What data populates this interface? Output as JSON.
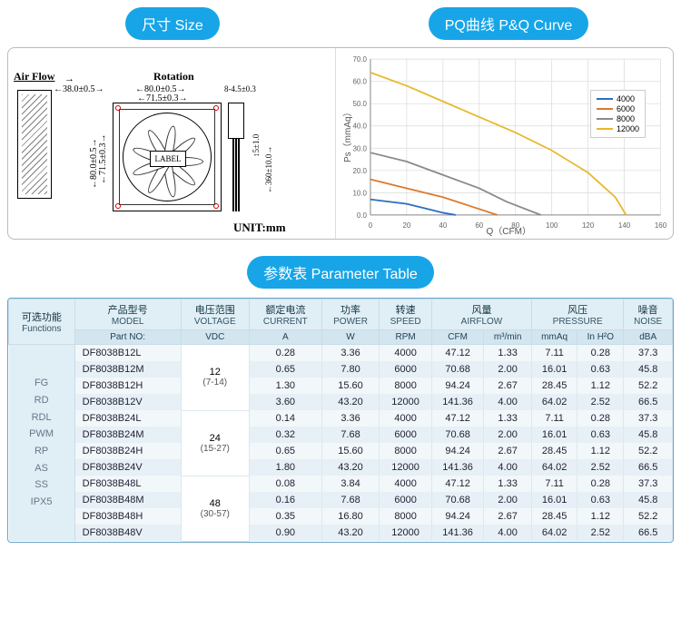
{
  "headers": {
    "size": "尺寸 Size",
    "pq": "PQ曲线 P&Q Curve",
    "param": "参数表 Parameter Table"
  },
  "drawing": {
    "airflow": "Air Flow",
    "rotation": "Rotation",
    "dim_depth": "38.0±0.5",
    "dim_w1": "80.0±0.5",
    "dim_w2": "71.5±0.3",
    "dim_hole": "8-4.5±0.3",
    "dim_h1": "80.0±0.5",
    "dim_h2": "71.5±0.3",
    "dim_conn1": "5±1.0",
    "dim_conn2": "360±10.0",
    "label": "LABEL",
    "unit": "UNIT:mm"
  },
  "chart": {
    "ylabel": "Ps（mmAq）",
    "xlabel": "Q（CFM）",
    "xlim": [
      0,
      160
    ],
    "xtick_step": 20,
    "ylim": [
      0,
      70
    ],
    "ytick_step": 10,
    "grid_color": "#d9d9d9",
    "axis_color": "#888",
    "background": "#ffffff",
    "series": [
      {
        "name": "4000",
        "color": "#2b6fbf",
        "points": [
          [
            0,
            7
          ],
          [
            20,
            5
          ],
          [
            30,
            3
          ],
          [
            40,
            1
          ],
          [
            47,
            0
          ]
        ]
      },
      {
        "name": "6000",
        "color": "#d97b2f",
        "points": [
          [
            0,
            16
          ],
          [
            20,
            12
          ],
          [
            40,
            8
          ],
          [
            55,
            4
          ],
          [
            70,
            0
          ]
        ]
      },
      {
        "name": "8000",
        "color": "#8a8a8a",
        "points": [
          [
            0,
            28
          ],
          [
            20,
            24
          ],
          [
            40,
            18
          ],
          [
            60,
            12
          ],
          [
            75,
            6
          ],
          [
            94,
            0
          ]
        ]
      },
      {
        "name": "12000",
        "color": "#e8b92e",
        "points": [
          [
            0,
            64
          ],
          [
            20,
            58
          ],
          [
            40,
            51
          ],
          [
            60,
            44
          ],
          [
            80,
            37
          ],
          [
            100,
            29
          ],
          [
            120,
            19
          ],
          [
            135,
            8
          ],
          [
            141,
            0
          ]
        ]
      }
    ]
  },
  "table": {
    "head": {
      "functions": {
        "zh": "可选功能",
        "en": "Functions"
      },
      "model": {
        "zh": "产品型号",
        "en": "MODEL"
      },
      "voltage": {
        "zh": "电压范围",
        "en": "VOLTAGE"
      },
      "current": {
        "zh": "额定电流",
        "en": "CURRENT"
      },
      "power": {
        "zh": "功率",
        "en": "POWER"
      },
      "speed": {
        "zh": "转速",
        "en": "SPEED"
      },
      "airflow": {
        "zh": "风量",
        "en": "AIRFLOW"
      },
      "pressure": {
        "zh": "风压",
        "en": "PRESSURE"
      },
      "noise": {
        "zh": "噪音",
        "en": "NOISE"
      }
    },
    "subhead": [
      "Part NO:",
      "VDC",
      "A",
      "W",
      "RPM",
      "CFM",
      "m³/min",
      "mmAq",
      "In H²O",
      "dBA"
    ],
    "functions_list": [
      "FG",
      "RD",
      "RDL",
      "PWM",
      "RP",
      "AS",
      "SS",
      "IPX5"
    ],
    "voltage_groups": [
      {
        "v": "12",
        "range": "(7-14)",
        "span": 4
      },
      {
        "v": "24",
        "range": "(15-27)",
        "span": 4
      },
      {
        "v": "48",
        "range": "(30-57)",
        "span": 4
      }
    ],
    "rows": [
      {
        "model": "DF8038B12L",
        "a": "0.28",
        "w": "3.36",
        "rpm": "4000",
        "cfm": "47.12",
        "m3": "1.33",
        "mmaq": "7.11",
        "inh": "0.28",
        "dba": "37.3"
      },
      {
        "model": "DF8038B12M",
        "a": "0.65",
        "w": "7.80",
        "rpm": "6000",
        "cfm": "70.68",
        "m3": "2.00",
        "mmaq": "16.01",
        "inh": "0.63",
        "dba": "45.8"
      },
      {
        "model": "DF8038B12H",
        "a": "1.30",
        "w": "15.60",
        "rpm": "8000",
        "cfm": "94.24",
        "m3": "2.67",
        "mmaq": "28.45",
        "inh": "1.12",
        "dba": "52.2"
      },
      {
        "model": "DF8038B12V",
        "a": "3.60",
        "w": "43.20",
        "rpm": "12000",
        "cfm": "141.36",
        "m3": "4.00",
        "mmaq": "64.02",
        "inh": "2.52",
        "dba": "66.5"
      },
      {
        "model": "DF8038B24L",
        "a": "0.14",
        "w": "3.36",
        "rpm": "4000",
        "cfm": "47.12",
        "m3": "1.33",
        "mmaq": "7.11",
        "inh": "0.28",
        "dba": "37.3"
      },
      {
        "model": "DF8038B24M",
        "a": "0.32",
        "w": "7.68",
        "rpm": "6000",
        "cfm": "70.68",
        "m3": "2.00",
        "mmaq": "16.01",
        "inh": "0.63",
        "dba": "45.8"
      },
      {
        "model": "DF8038B24H",
        "a": "0.65",
        "w": "15.60",
        "rpm": "8000",
        "cfm": "94.24",
        "m3": "2.67",
        "mmaq": "28.45",
        "inh": "1.12",
        "dba": "52.2"
      },
      {
        "model": "DF8038B24V",
        "a": "1.80",
        "w": "43.20",
        "rpm": "12000",
        "cfm": "141.36",
        "m3": "4.00",
        "mmaq": "64.02",
        "inh": "2.52",
        "dba": "66.5"
      },
      {
        "model": "DF8038B48L",
        "a": "0.08",
        "w": "3.84",
        "rpm": "4000",
        "cfm": "47.12",
        "m3": "1.33",
        "mmaq": "7.11",
        "inh": "0.28",
        "dba": "37.3"
      },
      {
        "model": "DF8038B48M",
        "a": "0.16",
        "w": "7.68",
        "rpm": "6000",
        "cfm": "70.68",
        "m3": "2.00",
        "mmaq": "16.01",
        "inh": "0.63",
        "dba": "45.8"
      },
      {
        "model": "DF8038B48H",
        "a": "0.35",
        "w": "16.80",
        "rpm": "8000",
        "cfm": "94.24",
        "m3": "2.67",
        "mmaq": "28.45",
        "inh": "1.12",
        "dba": "52.2"
      },
      {
        "model": "DF8038B48V",
        "a": "0.90",
        "w": "43.20",
        "rpm": "12000",
        "cfm": "141.36",
        "m3": "4.00",
        "mmaq": "64.02",
        "inh": "2.52",
        "dba": "66.5"
      }
    ]
  }
}
